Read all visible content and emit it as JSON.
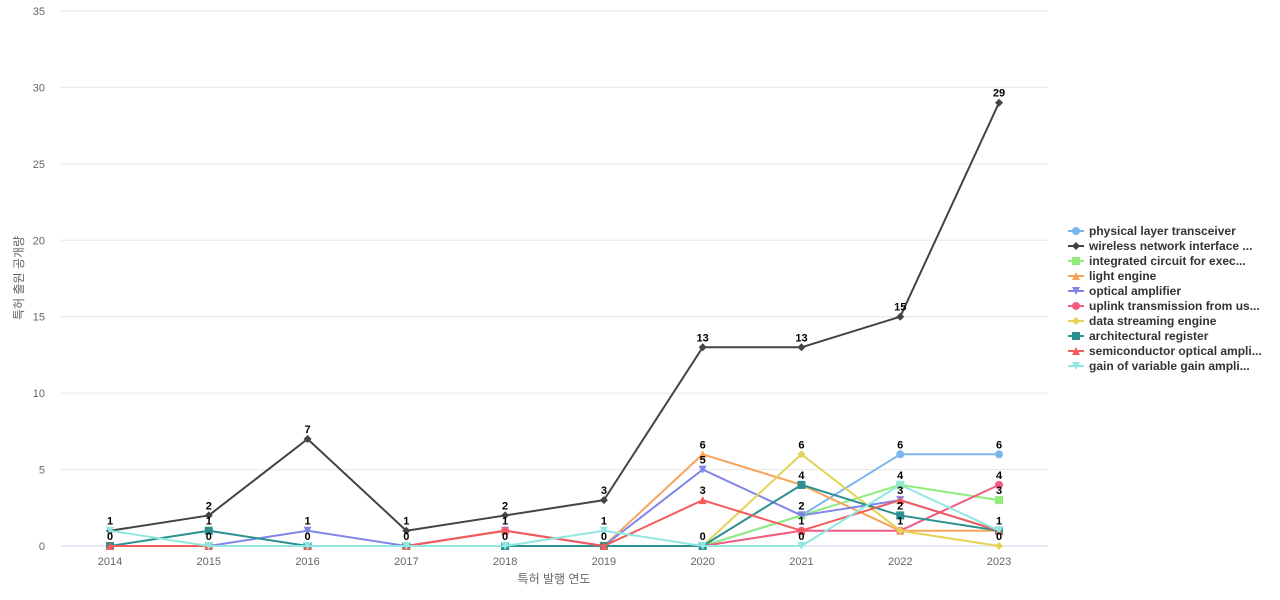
{
  "chart_data": {
    "type": "line",
    "xlabel": "특허 발행 연도",
    "ylabel": "특허 출원 공개량",
    "x": [
      "2014",
      "2015",
      "2016",
      "2017",
      "2018",
      "2019",
      "2020",
      "2021",
      "2022",
      "2023"
    ],
    "ylim": [
      0,
      35
    ],
    "yticks": [
      0,
      5,
      10,
      15,
      20,
      25,
      30,
      35
    ],
    "grid": true,
    "legend_position": "right",
    "series": [
      {
        "name": "physical layer transceiver",
        "color": "#7cb5ec",
        "marker": "circle",
        "values": [
          0,
          0,
          0,
          0,
          0,
          0,
          0,
          2,
          6,
          6
        ]
      },
      {
        "name": "wireless network interface ...",
        "color": "#434348",
        "marker": "diamond",
        "values": [
          1,
          2,
          7,
          1,
          2,
          3,
          13,
          13,
          15,
          29
        ]
      },
      {
        "name": "integrated circuit for exec...",
        "color": "#90ed7d",
        "marker": "square",
        "values": [
          0,
          0,
          0,
          0,
          0,
          0,
          0,
          2,
          4,
          3
        ]
      },
      {
        "name": "light engine",
        "color": "#f7a35c",
        "marker": "triangle",
        "values": [
          0,
          0,
          0,
          0,
          0,
          0,
          6,
          4,
          1,
          1
        ]
      },
      {
        "name": "optical amplifier",
        "color": "#8085e9",
        "marker": "triangle-down",
        "values": [
          0,
          0,
          1,
          0,
          1,
          0,
          5,
          2,
          3,
          1
        ]
      },
      {
        "name": "uplink transmission from us...",
        "color": "#f15c80",
        "marker": "circle",
        "values": [
          0,
          0,
          0,
          0,
          1,
          0,
          0,
          1,
          1,
          4
        ]
      },
      {
        "name": "data streaming engine",
        "color": "#e4d354",
        "marker": "diamond",
        "values": [
          0,
          0,
          0,
          0,
          0,
          0,
          0,
          6,
          1,
          0
        ]
      },
      {
        "name": "architectural register",
        "color": "#2b908f",
        "marker": "square",
        "values": [
          0,
          1,
          0,
          0,
          0,
          0,
          0,
          4,
          2,
          1
        ]
      },
      {
        "name": "semiconductor optical ampli...",
        "color": "#f45b5b",
        "marker": "triangle",
        "values": [
          0,
          0,
          0,
          0,
          1,
          0,
          3,
          1,
          3,
          1
        ]
      },
      {
        "name": "gain of variable gain ampli...",
        "color": "#91e8e1",
        "marker": "triangle-down",
        "values": [
          1,
          0,
          0,
          0,
          0,
          1,
          0,
          0,
          4,
          1
        ]
      }
    ],
    "data_labels": [
      {
        "series": 1,
        "index": 0,
        "text": "1"
      },
      {
        "series": 7,
        "index": 0,
        "text": "0"
      },
      {
        "series": 1,
        "index": 1,
        "text": "2"
      },
      {
        "series": 7,
        "index": 1,
        "text": "1"
      },
      {
        "series": 4,
        "index": 1,
        "text": "0"
      },
      {
        "series": 1,
        "index": 2,
        "text": "7"
      },
      {
        "series": 4,
        "index": 2,
        "text": "1"
      },
      {
        "series": 0,
        "index": 2,
        "text": "0"
      },
      {
        "series": 1,
        "index": 3,
        "text": "1"
      },
      {
        "series": 0,
        "index": 3,
        "text": "0"
      },
      {
        "series": 1,
        "index": 4,
        "text": "2"
      },
      {
        "series": 5,
        "index": 4,
        "text": "1"
      },
      {
        "series": 0,
        "index": 4,
        "text": "0"
      },
      {
        "series": 1,
        "index": 5,
        "text": "3"
      },
      {
        "series": 9,
        "index": 5,
        "text": "1"
      },
      {
        "series": 0,
        "index": 5,
        "text": "0"
      },
      {
        "series": 1,
        "index": 6,
        "text": "13"
      },
      {
        "series": 3,
        "index": 6,
        "text": "6"
      },
      {
        "series": 4,
        "index": 6,
        "text": "5"
      },
      {
        "series": 8,
        "index": 6,
        "text": "3"
      },
      {
        "series": 0,
        "index": 6,
        "text": "0"
      },
      {
        "series": 1,
        "index": 7,
        "text": "13"
      },
      {
        "series": 6,
        "index": 7,
        "text": "6"
      },
      {
        "series": 7,
        "index": 7,
        "text": "4"
      },
      {
        "series": 0,
        "index": 7,
        "text": "2"
      },
      {
        "series": 5,
        "index": 7,
        "text": "1"
      },
      {
        "series": 9,
        "index": 7,
        "text": "0"
      },
      {
        "series": 1,
        "index": 8,
        "text": "15"
      },
      {
        "series": 0,
        "index": 8,
        "text": "6"
      },
      {
        "series": 2,
        "index": 8,
        "text": "4"
      },
      {
        "series": 4,
        "index": 8,
        "text": "3"
      },
      {
        "series": 7,
        "index": 8,
        "text": "2"
      },
      {
        "series": 5,
        "index": 8,
        "text": "1"
      },
      {
        "series": 1,
        "index": 9,
        "text": "29"
      },
      {
        "series": 0,
        "index": 9,
        "text": "6"
      },
      {
        "series": 5,
        "index": 9,
        "text": "4"
      },
      {
        "series": 2,
        "index": 9,
        "text": "3"
      },
      {
        "series": 7,
        "index": 9,
        "text": "1"
      },
      {
        "series": 6,
        "index": 9,
        "text": "0"
      }
    ]
  }
}
